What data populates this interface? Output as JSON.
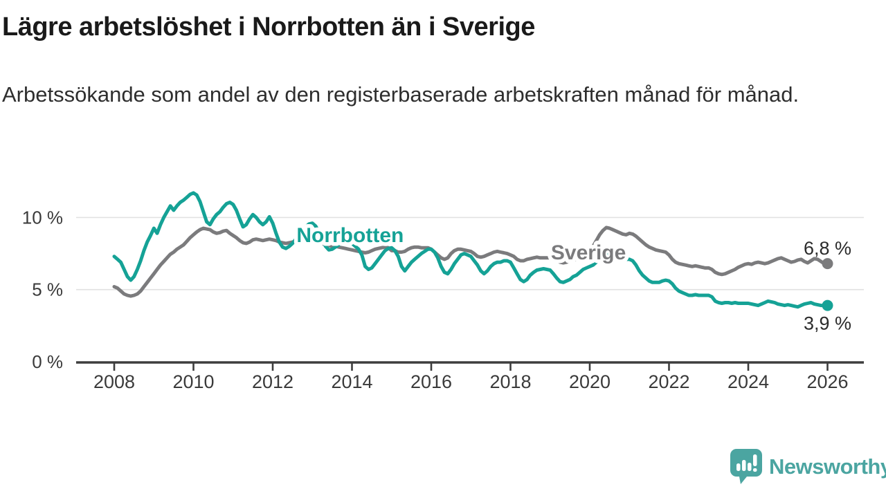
{
  "header": {
    "title": "Lägre arbetslöshet i Norrbotten än i Sverige",
    "subtitle": "Arbetssökande som andel av den registerbaserade arbetskraften månad för månad."
  },
  "footer": {
    "brand": "Newsworthy",
    "brand_color": "#4ba5a1",
    "logo_icon": "speech-bubble-bar-chart-icon"
  },
  "chart_data": {
    "type": "line",
    "title": "Lägre arbetslöshet i Norrbotten än i Sverige",
    "unit": "%",
    "frequency": "monthly",
    "grid": true,
    "gridline_color": "#e1e1e1",
    "axis_color": "#3d3d3d",
    "text_color": "#3a3a3a",
    "end_label_color": "#2b2b2b",
    "x_axis": {
      "start_year": 2008,
      "end_year": 2026,
      "tick_years": [
        2008,
        2010,
        2012,
        2014,
        2016,
        2018,
        2020,
        2022,
        2024,
        2026
      ],
      "tick_labels": [
        "2008",
        "2010",
        "2012",
        "2014",
        "2016",
        "2018",
        "2020",
        "2022",
        "2024",
        "2026"
      ]
    },
    "y_axis": {
      "ticks": [
        {
          "value": 0,
          "label": "0 %"
        },
        {
          "value": 5,
          "label": "5 %"
        },
        {
          "value": 10,
          "label": "10 %"
        }
      ],
      "min": 0,
      "max": 12.3
    },
    "series": [
      {
        "name": "Sverige",
        "color": "#7b7b7d",
        "end_value": 6.8,
        "end_value_label": "6,8 %",
        "end_label_position": "above",
        "label_pos": {
          "year": 2019.02,
          "value": 7.1
        },
        "values": [
          5.2,
          5.1,
          4.9,
          4.7,
          4.6,
          4.55,
          4.6,
          4.7,
          4.9,
          5.2,
          5.5,
          5.8,
          6.1,
          6.4,
          6.7,
          6.95,
          7.2,
          7.45,
          7.6,
          7.8,
          7.95,
          8.1,
          8.35,
          8.6,
          8.8,
          9.0,
          9.15,
          9.25,
          9.2,
          9.15,
          9.0,
          8.9,
          8.95,
          9.05,
          9.1,
          8.9,
          8.75,
          8.6,
          8.4,
          8.25,
          8.2,
          8.3,
          8.45,
          8.5,
          8.45,
          8.4,
          8.45,
          8.5,
          8.45,
          8.4,
          8.3,
          8.25,
          8.2,
          8.25,
          8.3,
          8.35,
          8.4,
          8.45,
          8.5,
          8.5,
          8.45,
          8.4,
          8.3,
          8.2,
          8.1,
          8.05,
          8.0,
          8.0,
          7.95,
          7.9,
          7.85,
          7.8,
          7.75,
          7.7,
          7.65,
          7.6,
          7.55,
          7.6,
          7.7,
          7.8,
          7.85,
          7.9,
          7.95,
          7.9,
          7.7,
          7.7,
          7.6,
          7.6,
          7.65,
          7.8,
          7.9,
          7.95,
          7.95,
          7.9,
          7.9,
          7.9,
          7.8,
          7.6,
          7.4,
          7.2,
          7.1,
          7.2,
          7.5,
          7.7,
          7.8,
          7.8,
          7.75,
          7.7,
          7.65,
          7.5,
          7.3,
          7.25,
          7.3,
          7.4,
          7.5,
          7.6,
          7.65,
          7.6,
          7.55,
          7.5,
          7.4,
          7.3,
          7.1,
          7.0,
          7.0,
          7.1,
          7.15,
          7.2,
          7.25,
          7.2,
          7.2,
          7.2,
          7.2,
          7.1,
          7.0,
          6.9,
          6.85,
          6.9,
          7.0,
          7.05,
          7.1,
          7.2,
          7.35,
          7.5,
          7.7,
          8.0,
          8.4,
          8.8,
          9.1,
          9.3,
          9.25,
          9.15,
          9.05,
          8.95,
          8.85,
          8.8,
          8.9,
          8.85,
          8.7,
          8.5,
          8.3,
          8.1,
          7.95,
          7.85,
          7.75,
          7.7,
          7.65,
          7.6,
          7.4,
          7.1,
          6.9,
          6.8,
          6.75,
          6.7,
          6.65,
          6.6,
          6.65,
          6.6,
          6.55,
          6.5,
          6.5,
          6.4,
          6.2,
          6.1,
          6.05,
          6.1,
          6.2,
          6.3,
          6.4,
          6.55,
          6.65,
          6.75,
          6.8,
          6.75,
          6.85,
          6.9,
          6.85,
          6.8,
          6.85,
          6.95,
          7.05,
          7.15,
          7.2,
          7.1,
          7.0,
          6.9,
          6.95,
          7.05,
          7.1,
          6.95,
          6.85,
          7.0,
          7.15,
          7.1,
          6.95,
          6.8,
          6.8
        ]
      },
      {
        "name": "Norrbotten",
        "color": "#15a296",
        "end_value": 3.9,
        "end_value_label": "3,9 %",
        "end_label_position": "below",
        "label_pos": {
          "year": 2012.6,
          "value": 8.3
        },
        "values": [
          7.3,
          7.1,
          6.9,
          6.4,
          5.9,
          5.65,
          5.9,
          6.4,
          7.0,
          7.7,
          8.3,
          8.75,
          9.25,
          8.9,
          9.5,
          10.0,
          10.4,
          10.8,
          10.5,
          10.8,
          11.05,
          11.2,
          11.4,
          11.6,
          11.7,
          11.55,
          11.1,
          10.4,
          9.7,
          9.5,
          9.9,
          10.2,
          10.4,
          10.7,
          10.95,
          11.05,
          10.9,
          10.5,
          9.9,
          9.35,
          9.5,
          9.9,
          10.2,
          10.0,
          9.7,
          9.5,
          9.7,
          10.05,
          9.6,
          8.9,
          8.3,
          7.95,
          7.85,
          8.0,
          8.2,
          8.5,
          8.8,
          9.1,
          9.35,
          9.55,
          9.6,
          9.4,
          9.0,
          8.5,
          8.0,
          7.75,
          7.8,
          7.95,
          8.1,
          8.25,
          8.35,
          8.3,
          8.2,
          8.0,
          7.8,
          7.4,
          6.6,
          6.4,
          6.5,
          6.8,
          7.1,
          7.4,
          7.7,
          7.85,
          7.9,
          7.7,
          7.3,
          6.6,
          6.3,
          6.6,
          6.9,
          7.1,
          7.3,
          7.5,
          7.65,
          7.8,
          7.8,
          7.6,
          7.2,
          6.6,
          6.2,
          6.1,
          6.4,
          6.8,
          7.1,
          7.4,
          7.5,
          7.4,
          7.3,
          7.0,
          6.7,
          6.3,
          6.1,
          6.3,
          6.6,
          6.8,
          6.9,
          6.9,
          7.0,
          7.0,
          6.9,
          6.5,
          6.1,
          5.7,
          5.55,
          5.7,
          6.0,
          6.2,
          6.35,
          6.4,
          6.45,
          6.4,
          6.35,
          6.1,
          5.8,
          5.55,
          5.5,
          5.6,
          5.7,
          5.9,
          6.0,
          6.2,
          6.4,
          6.5,
          6.6,
          6.7,
          6.9,
          7.2,
          7.4,
          7.45,
          7.35,
          7.25,
          7.15,
          7.1,
          7.05,
          7.1,
          7.1,
          7.0,
          6.7,
          6.3,
          6.0,
          5.8,
          5.6,
          5.5,
          5.5,
          5.5,
          5.6,
          5.65,
          5.6,
          5.4,
          5.1,
          4.9,
          4.8,
          4.7,
          4.6,
          4.6,
          4.65,
          4.6,
          4.6,
          4.6,
          4.6,
          4.5,
          4.2,
          4.1,
          4.05,
          4.1,
          4.1,
          4.05,
          4.1,
          4.05,
          4.05,
          4.05,
          4.05,
          4.0,
          3.95,
          3.9,
          4.0,
          4.1,
          4.2,
          4.15,
          4.1,
          4.0,
          3.95,
          3.9,
          3.95,
          3.9,
          3.85,
          3.8,
          3.9,
          4.0,
          4.05,
          4.1,
          4.0,
          3.95,
          3.9,
          3.9,
          3.9
        ]
      }
    ]
  }
}
